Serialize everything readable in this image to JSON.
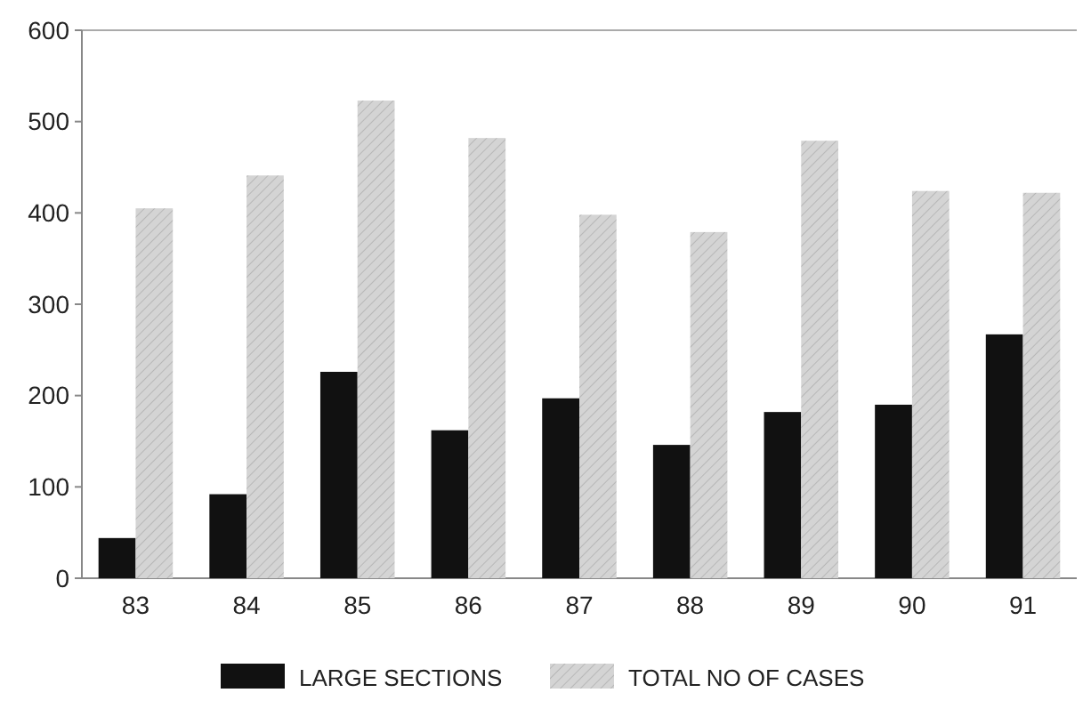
{
  "chart_data": {
    "type": "bar",
    "categories": [
      "83",
      "84",
      "85",
      "86",
      "87",
      "88",
      "89",
      "90",
      "91"
    ],
    "series": [
      {
        "name": "LARGE SECTIONS",
        "color": "#111111",
        "values": [
          44,
          92,
          226,
          162,
          197,
          146,
          182,
          190,
          267
        ]
      },
      {
        "name": "TOTAL NO OF CASES",
        "color": "#d4d4d4",
        "values": [
          405,
          441,
          523,
          482,
          398,
          379,
          479,
          424,
          422
        ]
      }
    ],
    "ylim": [
      0,
      600
    ],
    "yticks": [
      0,
      100,
      200,
      300,
      400,
      500,
      600
    ],
    "grid": false,
    "legend": "bottom"
  }
}
